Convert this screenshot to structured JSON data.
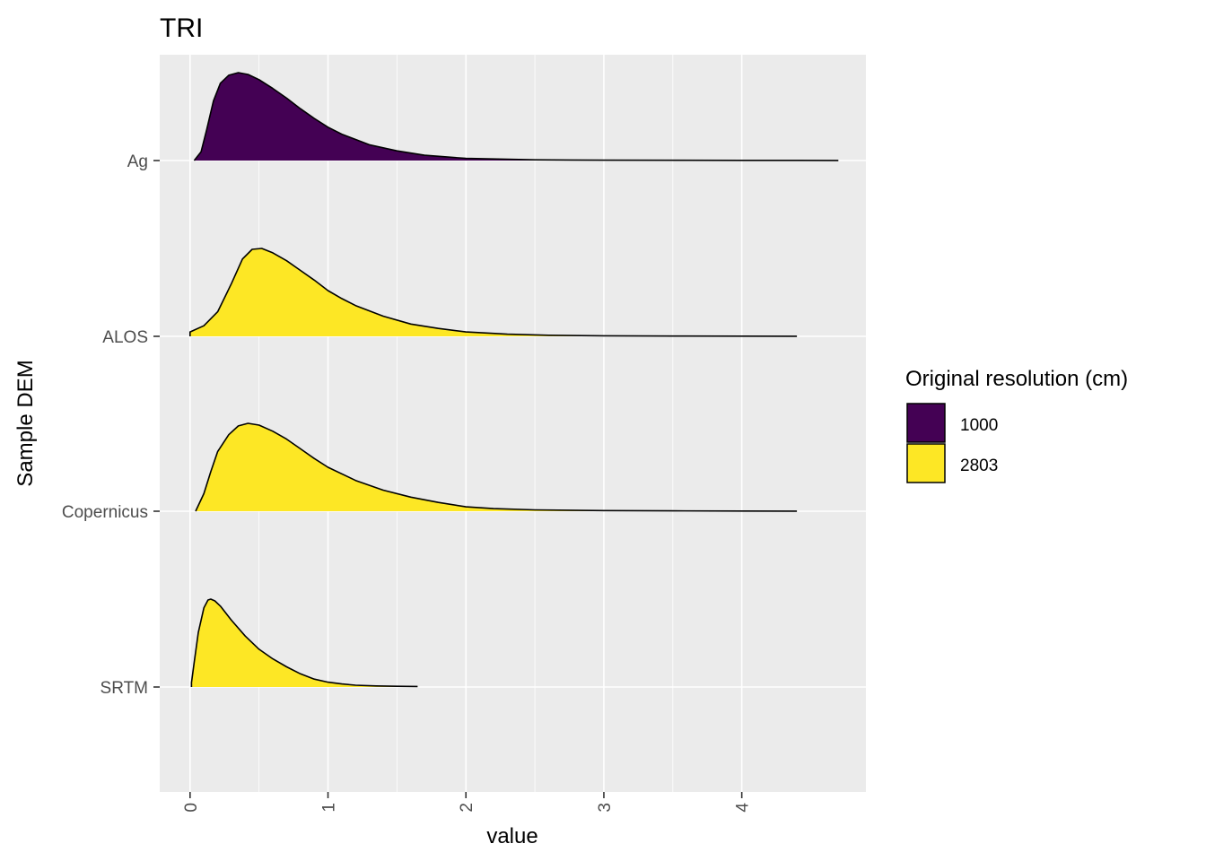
{
  "chart_data": {
    "type": "ridgeline",
    "title": "TRI",
    "xlabel": "value",
    "ylabel": "Sample DEM",
    "xlim": [
      -0.22,
      4.9
    ],
    "x_ticks": [
      0,
      1,
      2,
      3,
      4
    ],
    "x_tick_labels": [
      "0",
      "1",
      "2",
      "3",
      "4"
    ],
    "grid": true,
    "legend": {
      "title": "Original resolution (cm)",
      "position": "right",
      "entries": [
        {
          "label": "1000",
          "color": "#440154"
        },
        {
          "label": "2803",
          "color": "#FDE725"
        }
      ]
    },
    "categories": [
      "Ag",
      "ALOS",
      "Copernicus",
      "SRTM"
    ],
    "series": [
      {
        "name": "Ag",
        "resolution": "1000",
        "color": "#440154",
        "x": [
          0.03,
          0.08,
          0.12,
          0.17,
          0.22,
          0.28,
          0.35,
          0.42,
          0.5,
          0.6,
          0.7,
          0.8,
          0.9,
          1.0,
          1.1,
          1.2,
          1.3,
          1.5,
          1.7,
          2.0,
          2.5,
          3.0,
          4.0,
          4.7
        ],
        "density": [
          0.0,
          0.1,
          0.35,
          0.68,
          0.88,
          0.97,
          1.0,
          0.98,
          0.92,
          0.82,
          0.71,
          0.59,
          0.48,
          0.38,
          0.3,
          0.24,
          0.18,
          0.11,
          0.06,
          0.025,
          0.008,
          0.004,
          0.002,
          0.001
        ]
      },
      {
        "name": "ALOS",
        "resolution": "2803",
        "color": "#FDE725",
        "x": [
          0.0,
          0.1,
          0.2,
          0.3,
          0.38,
          0.45,
          0.52,
          0.6,
          0.7,
          0.8,
          0.9,
          1.0,
          1.1,
          1.2,
          1.4,
          1.6,
          1.8,
          2.0,
          2.3,
          2.6,
          3.0,
          3.5,
          4.0,
          4.4
        ],
        "density": [
          0.05,
          0.12,
          0.28,
          0.6,
          0.88,
          0.99,
          1.0,
          0.95,
          0.86,
          0.75,
          0.64,
          0.52,
          0.43,
          0.35,
          0.23,
          0.14,
          0.09,
          0.05,
          0.025,
          0.012,
          0.006,
          0.003,
          0.002,
          0.001
        ]
      },
      {
        "name": "Copernicus",
        "resolution": "2803",
        "color": "#FDE725",
        "x": [
          0.04,
          0.1,
          0.15,
          0.2,
          0.28,
          0.35,
          0.42,
          0.5,
          0.6,
          0.7,
          0.8,
          0.9,
          1.0,
          1.2,
          1.4,
          1.6,
          1.8,
          2.0,
          2.2,
          2.5,
          3.0,
          3.5,
          4.0,
          4.4
        ],
        "density": [
          0.0,
          0.2,
          0.45,
          0.68,
          0.87,
          0.97,
          1.0,
          0.98,
          0.91,
          0.82,
          0.71,
          0.6,
          0.5,
          0.35,
          0.24,
          0.16,
          0.1,
          0.05,
          0.03,
          0.015,
          0.007,
          0.004,
          0.002,
          0.001
        ]
      },
      {
        "name": "SRTM",
        "resolution": "2803",
        "color": "#FDE725",
        "x": [
          0.01,
          0.03,
          0.06,
          0.1,
          0.13,
          0.15,
          0.18,
          0.22,
          0.3,
          0.4,
          0.5,
          0.6,
          0.7,
          0.8,
          0.9,
          1.0,
          1.1,
          1.2,
          1.35,
          1.5,
          1.65
        ],
        "density": [
          0.05,
          0.28,
          0.62,
          0.9,
          0.99,
          1.0,
          0.98,
          0.92,
          0.76,
          0.58,
          0.43,
          0.32,
          0.23,
          0.15,
          0.09,
          0.055,
          0.035,
          0.02,
          0.012,
          0.008,
          0.006
        ]
      }
    ]
  }
}
